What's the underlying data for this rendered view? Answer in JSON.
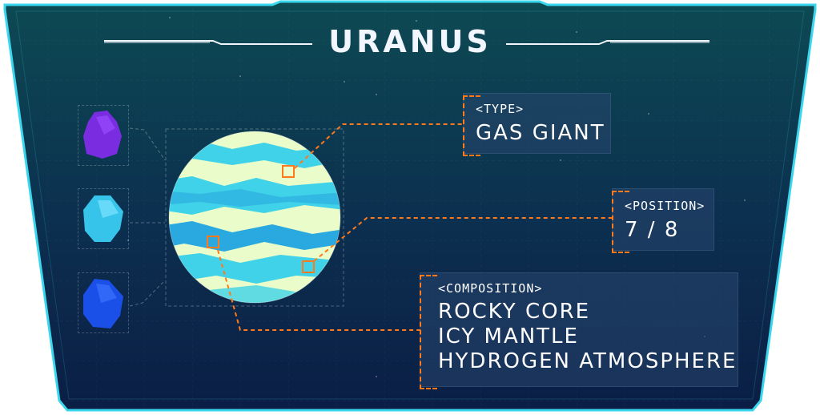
{
  "title": "URANUS",
  "type_panel": {
    "tag": "<TYPE>",
    "value": "GAS GIANT"
  },
  "position_panel": {
    "tag": "<POSITION>",
    "value": "7 / 8"
  },
  "composition_panel": {
    "tag": "<COMPOSITION>",
    "lines": [
      "ROCKY CORE",
      "ICY MANTLE",
      "HYDROGEN ATMOSPHERE"
    ]
  },
  "thumbnails": [
    {
      "name": "purple-crystal-icon",
      "color": "#7a2de0"
    },
    {
      "name": "cyan-crystal-icon",
      "color": "#36c4ea"
    },
    {
      "name": "blue-crystal-icon",
      "color": "#1a4fe8"
    }
  ],
  "colors": {
    "frame_border": "#39d6ee",
    "background_top": "#0d4a52",
    "background_bottom": "#0b1e45",
    "accent": "#ff7a1a",
    "planet_light": "#eafcc9",
    "planet_band": "#3fd2e8",
    "planet_band_dark": "#2aa8e0"
  }
}
